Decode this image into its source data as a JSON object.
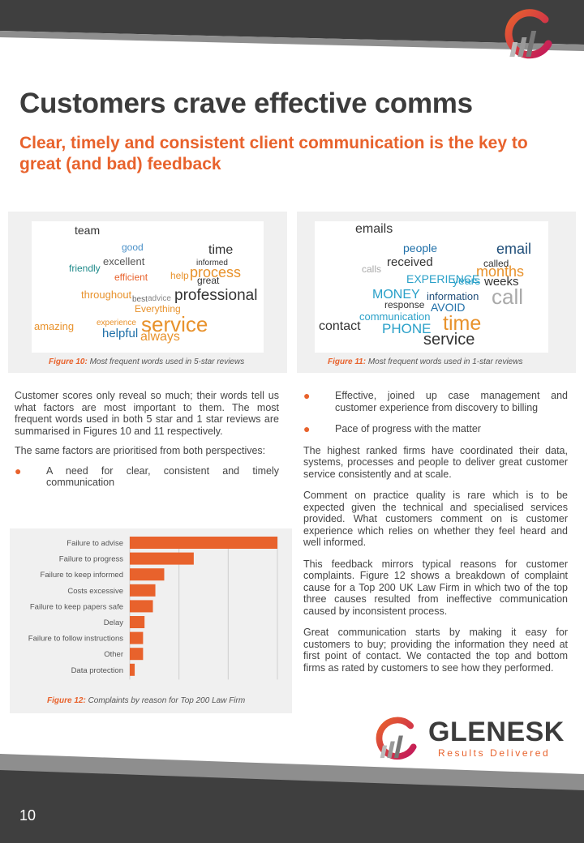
{
  "header": {
    "title": "Customers crave effective comms",
    "subtitle": "Clear, timely and consistent client communication is the key to great (and bad) feedback"
  },
  "colors": {
    "accent": "#e8622c",
    "dark": "#3a3a3a",
    "grey_band": "#8a8a8a"
  },
  "figures": {
    "fig10": {
      "label": "Figure 10:",
      "text": " Most frequent words used in 5-star reviews"
    },
    "fig11": {
      "label": "Figure 11:",
      "text": " Most frequent words used in 1-star reviews"
    },
    "fig12": {
      "label": "Figure 12:",
      "text": " Complaints by reason for Top 200 Law Firm"
    }
  },
  "wordcloud5": [
    "team",
    "good",
    "time",
    "excellent",
    "informed",
    "friendly",
    "process",
    "efficient",
    "help",
    "great",
    "professional",
    "throughout",
    "best",
    "advice",
    "Everything",
    "amazing",
    "experience",
    "service",
    "helpful",
    "always"
  ],
  "wordcloud1": [
    "emails",
    "people",
    "email",
    "received",
    "called",
    "calls",
    "months",
    "EXPERIENCE",
    "years",
    "weeks",
    "MONEY",
    "information",
    "call",
    "response",
    "AVOID",
    "communication",
    "contact",
    "PHONE",
    "time",
    "service"
  ],
  "left_column": {
    "p1": "Customer scores only reveal so much; their words tell us what factors are most important to them. The most frequent words used in both 5 star and 1 star reviews are summarised in Figures 10 and 11 respectively.",
    "p2": "The same factors are prioritised from both perspectives:",
    "bullet1": "A need for clear, consistent and timely communication"
  },
  "right_column": {
    "bullet2": "Effective, joined up case management and customer experience from discovery to billing",
    "bullet3": "Pace of progress with the matter",
    "p3": "The highest ranked firms have coordinated their data, systems, processes and people to deliver great customer service consistently and at scale.",
    "p4": "Comment on practice quality is rare which is to be expected given the technical and specialised services provided.  What customers comment on is customer experience which relies on whether they feel heard and well informed.",
    "p5": "This feedback mirrors typical reasons for customer complaints. Figure 12 shows a breakdown of complaint cause for a Top 200 UK Law Firm in which two of the top three causes resulted from ineffective communication caused by inconsistent process.",
    "p6": "Great communication starts by making it easy for customers to buy; providing the information they need at first point of contact. We contacted the top and bottom firms as rated by customers to see how they performed."
  },
  "chart_data": {
    "type": "bar",
    "orientation": "horizontal",
    "categories": [
      "Failure to advise",
      "Failure to progress",
      "Failure to keep informed",
      "Costs excessive",
      "Failure to keep papers safe",
      "Delay",
      "Failure to follow instructions",
      "Other",
      "Data protection"
    ],
    "values": [
      30,
      13,
      7,
      5.2,
      4.7,
      3,
      2.7,
      2.7,
      1
    ],
    "xlim": [
      0,
      30
    ],
    "grid": true,
    "color": "#e8622c"
  },
  "brand": {
    "name": "GLENESK",
    "tagline": "Results Delivered"
  },
  "footer": {
    "page_number": "10"
  }
}
